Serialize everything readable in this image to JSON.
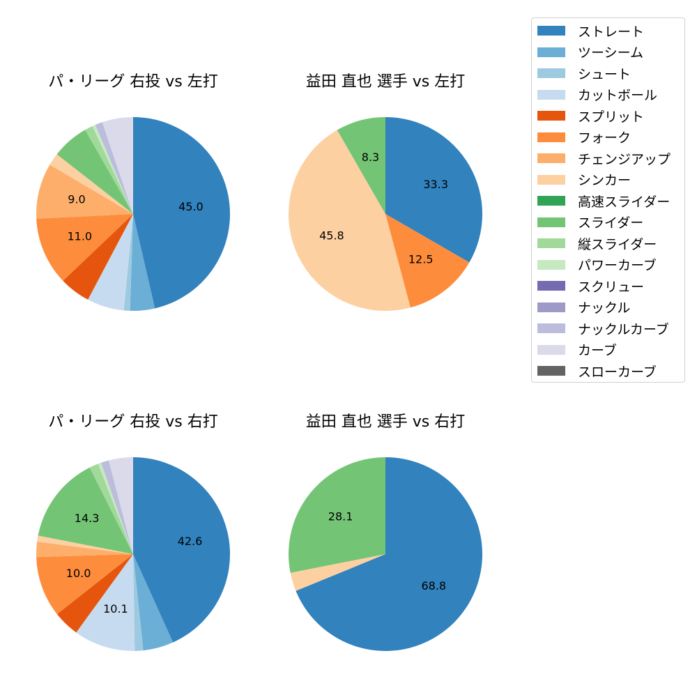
{
  "chart_data": [
    {
      "type": "pie",
      "title": "パ・リーグ 右投 vs 左打",
      "slices": [
        {
          "category": "ストレート",
          "value": 45.0,
          "label": "45.0"
        },
        {
          "category": "ツーシーム",
          "value": 4.0,
          "label": ""
        },
        {
          "category": "シュート",
          "value": 1.0,
          "label": ""
        },
        {
          "category": "カットボール",
          "value": 6.0,
          "label": ""
        },
        {
          "category": "スプリット",
          "value": 5.0,
          "label": ""
        },
        {
          "category": "フォーク",
          "value": 11.0,
          "label": "11.0"
        },
        {
          "category": "チェンジアップ",
          "value": 9.0,
          "label": "9.0"
        },
        {
          "category": "シンカー",
          "value": 2.0,
          "label": ""
        },
        {
          "category": "スライダー",
          "value": 6.0,
          "label": ""
        },
        {
          "category": "縦スライダー",
          "value": 1.3,
          "label": ""
        },
        {
          "category": "パワーカーブ",
          "value": 0.5,
          "label": ""
        },
        {
          "category": "ナックルカーブ",
          "value": 1.2,
          "label": ""
        },
        {
          "category": "カーブ",
          "value": 5.0,
          "label": ""
        }
      ]
    },
    {
      "type": "pie",
      "title": "益田 直也 選手 vs 左打",
      "slices": [
        {
          "category": "ストレート",
          "value": 33.3,
          "label": "33.3"
        },
        {
          "category": "フォーク",
          "value": 12.5,
          "label": "12.5"
        },
        {
          "category": "シンカー",
          "value": 45.8,
          "label": "45.8"
        },
        {
          "category": "スライダー",
          "value": 8.3,
          "label": "8.3"
        }
      ]
    },
    {
      "type": "pie",
      "title": "パ・リーグ 右投 vs 右打",
      "slices": [
        {
          "category": "ストレート",
          "value": 42.6,
          "label": "42.6"
        },
        {
          "category": "ツーシーム",
          "value": 5.0,
          "label": ""
        },
        {
          "category": "シュート",
          "value": 1.4,
          "label": ""
        },
        {
          "category": "カットボール",
          "value": 10.1,
          "label": "10.1"
        },
        {
          "category": "スプリット",
          "value": 4.3,
          "label": ""
        },
        {
          "category": "フォーク",
          "value": 10.0,
          "label": "10.0"
        },
        {
          "category": "チェンジアップ",
          "value": 2.5,
          "label": ""
        },
        {
          "category": "シンカー",
          "value": 1.0,
          "label": ""
        },
        {
          "category": "スライダー",
          "value": 14.3,
          "label": "14.3"
        },
        {
          "category": "縦スライダー",
          "value": 1.5,
          "label": ""
        },
        {
          "category": "パワーカーブ",
          "value": 0.5,
          "label": ""
        },
        {
          "category": "ナックルカーブ",
          "value": 1.3,
          "label": ""
        },
        {
          "category": "カーブ",
          "value": 4.0,
          "label": ""
        }
      ]
    },
    {
      "type": "pie",
      "title": "益田 直也 選手 vs 右打",
      "slices": [
        {
          "category": "ストレート",
          "value": 68.8,
          "label": "68.8"
        },
        {
          "category": "シンカー",
          "value": 3.1,
          "label": ""
        },
        {
          "category": "スライダー",
          "value": 28.1,
          "label": "28.1"
        }
      ]
    }
  ],
  "legend": {
    "placement": "right",
    "items": [
      {
        "label": "ストレート",
        "color": "#3182bd"
      },
      {
        "label": "ツーシーム",
        "color": "#6baed6"
      },
      {
        "label": "シュート",
        "color": "#9ecae1"
      },
      {
        "label": "カットボール",
        "color": "#c6dbef"
      },
      {
        "label": "スプリット",
        "color": "#e6550d"
      },
      {
        "label": "フォーク",
        "color": "#fd8d3c"
      },
      {
        "label": "チェンジアップ",
        "color": "#fdae6b"
      },
      {
        "label": "シンカー",
        "color": "#fdd0a2"
      },
      {
        "label": "高速スライダー",
        "color": "#31a354"
      },
      {
        "label": "スライダー",
        "color": "#74c476"
      },
      {
        "label": "縦スライダー",
        "color": "#a1d99b"
      },
      {
        "label": "パワーカーブ",
        "color": "#c7e9c0"
      },
      {
        "label": "スクリュー",
        "color": "#756bb1"
      },
      {
        "label": "ナックル",
        "color": "#9e9ac8"
      },
      {
        "label": "ナックルカーブ",
        "color": "#bcbddc"
      },
      {
        "label": "カーブ",
        "color": "#dadaeb"
      },
      {
        "label": "スローカーブ",
        "color": "#636363"
      }
    ]
  }
}
